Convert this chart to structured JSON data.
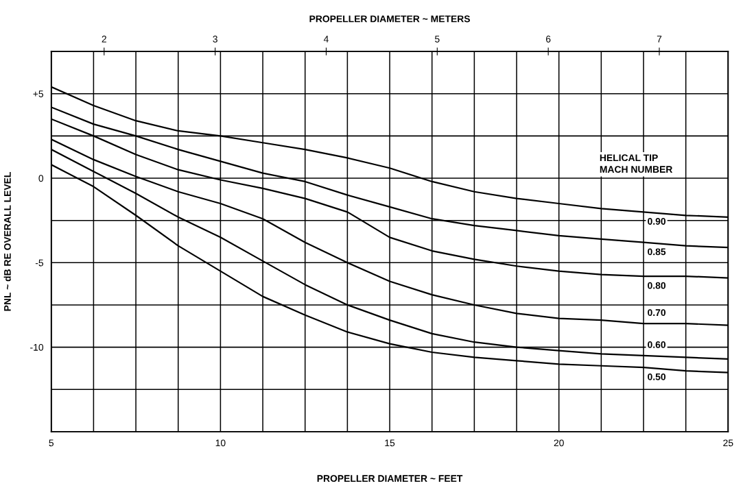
{
  "chart_data": {
    "type": "line",
    "xlabel": "PROPELLER DIAMETER ~ FEET",
    "ylabel": "PNL ~ dB RE OVERALL LEVEL",
    "x2label": "PROPELLER DIAMETER ~ METERS",
    "x": [
      5,
      6.25,
      7.5,
      8.75,
      10,
      11.25,
      12.5,
      13.75,
      15,
      16.25,
      17.5,
      18.75,
      20,
      21.25,
      22.5,
      23.75,
      25
    ],
    "xlim": [
      5,
      25
    ],
    "xticks": [
      5,
      {
        "value": 6.25,
        "label": null
      },
      {
        "value": 7.5,
        "label": null
      },
      {
        "value": 8.75,
        "label": null
      },
      10,
      {
        "value": 11.25,
        "label": null
      },
      {
        "value": 12.5,
        "label": null
      },
      {
        "value": 13.75,
        "label": null
      },
      15,
      {
        "value": 16.25,
        "label": null
      },
      {
        "value": 17.5,
        "label": null
      },
      {
        "value": 18.75,
        "label": null
      },
      20,
      {
        "value": 21.25,
        "label": null
      },
      {
        "value": 22.5,
        "label": null
      },
      {
        "value": 23.75,
        "label": null
      },
      25
    ],
    "x2lim": [
      1.524,
      7.62
    ],
    "x2ticks": [
      2,
      3,
      4,
      5,
      6,
      7
    ],
    "ylim": [
      -15,
      7.5
    ],
    "yticks": [
      {
        "value": -15,
        "label": null
      },
      {
        "value": -12.5,
        "label": null
      },
      -10,
      {
        "value": -7.5,
        "label": null
      },
      -5,
      {
        "value": -2.5,
        "label": null
      },
      0,
      {
        "value": 2.5,
        "label": null
      },
      {
        "value": 5,
        "label": "+5"
      },
      {
        "value": 7.5,
        "label": null
      }
    ],
    "grid": true,
    "legend": false,
    "marker": "none",
    "line_style": "solid",
    "series": [
      {
        "name": "0.90",
        "color": "#000000",
        "values": [
          5.4,
          4.3,
          3.4,
          2.8,
          2.5,
          2.1,
          1.7,
          1.2,
          0.6,
          -0.2,
          -0.8,
          -1.2,
          -1.5,
          -1.8,
          -2.0,
          -2.2,
          -2.3
        ]
      },
      {
        "name": "0.85",
        "color": "#000000",
        "values": [
          4.2,
          3.2,
          2.5,
          1.7,
          1.0,
          0.3,
          -0.2,
          -1.0,
          -1.7,
          -2.4,
          -2.8,
          -3.1,
          -3.4,
          -3.6,
          -3.8,
          -4.0,
          -4.1
        ]
      },
      {
        "name": "0.80",
        "color": "#000000",
        "values": [
          3.5,
          2.5,
          1.4,
          0.5,
          -0.1,
          -0.6,
          -1.2,
          -2.0,
          -3.5,
          -4.3,
          -4.8,
          -5.2,
          -5.5,
          -5.7,
          -5.8,
          -5.8,
          -5.9
        ]
      },
      {
        "name": "0.70",
        "color": "#000000",
        "values": [
          2.3,
          1.1,
          0.1,
          -0.8,
          -1.5,
          -2.4,
          -3.8,
          -5.0,
          -6.1,
          -6.9,
          -7.5,
          -8.0,
          -8.3,
          -8.4,
          -8.6,
          -8.6,
          -8.7
        ]
      },
      {
        "name": "0.60",
        "color": "#000000",
        "values": [
          1.7,
          0.4,
          -0.9,
          -2.3,
          -3.5,
          -4.9,
          -6.3,
          -7.5,
          -8.4,
          -9.2,
          -9.7,
          -10.0,
          -10.2,
          -10.4,
          -10.5,
          -10.6,
          -10.7
        ]
      },
      {
        "name": "0.50",
        "color": "#000000",
        "values": [
          0.8,
          -0.5,
          -2.2,
          -4.0,
          -5.5,
          -7.0,
          -8.1,
          -9.1,
          -9.8,
          -10.3,
          -10.6,
          -10.8,
          -11.0,
          -11.1,
          -11.2,
          -11.4,
          -11.5
        ]
      }
    ],
    "annotations": [
      "HELICAL TIP\nMACH NUMBER"
    ]
  }
}
